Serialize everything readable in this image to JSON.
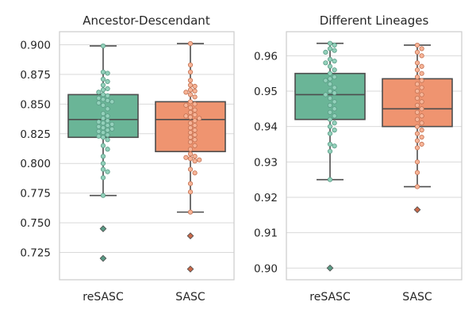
{
  "chart_data": [
    {
      "type": "box",
      "title": "Ancestor-Descendant",
      "categories": [
        "reSASC",
        "SASC"
      ],
      "ylim": [
        0.702,
        0.911
      ],
      "yticks": [
        0.725,
        0.75,
        0.775,
        0.8,
        0.825,
        0.85,
        0.875,
        0.9
      ],
      "ytick_labels": [
        "0.725",
        "0.750",
        "0.775",
        "0.800",
        "0.825",
        "0.850",
        "0.875",
        "0.900"
      ],
      "grid": true,
      "series": [
        {
          "color": "#66c2a5",
          "stats": {
            "q1": 0.822,
            "median": 0.837,
            "q3": 0.858,
            "whisker_low": 0.773,
            "whisker_high": 0.899
          },
          "outliers": [
            0.745,
            0.72
          ],
          "points": [
            0.899,
            0.877,
            0.876,
            0.871,
            0.869,
            0.866,
            0.863,
            0.862,
            0.86,
            0.858,
            0.857,
            0.855,
            0.854,
            0.853,
            0.852,
            0.851,
            0.849,
            0.846,
            0.842,
            0.84,
            0.838,
            0.836,
            0.835,
            0.834,
            0.833,
            0.832,
            0.831,
            0.83,
            0.829,
            0.828,
            0.827,
            0.826,
            0.824,
            0.823,
            0.822,
            0.82,
            0.815,
            0.812,
            0.806,
            0.8,
            0.795,
            0.793,
            0.788,
            0.773
          ]
        },
        {
          "color": "#fc8d62",
          "stats": {
            "q1": 0.81,
            "median": 0.837,
            "q3": 0.852,
            "whisker_low": 0.759,
            "whisker_high": 0.901
          },
          "outliers": [
            0.739,
            0.711
          ],
          "points": [
            0.901,
            0.883,
            0.877,
            0.87,
            0.866,
            0.865,
            0.862,
            0.861,
            0.86,
            0.858,
            0.856,
            0.852,
            0.85,
            0.849,
            0.847,
            0.845,
            0.843,
            0.841,
            0.84,
            0.839,
            0.838,
            0.836,
            0.834,
            0.832,
            0.83,
            0.828,
            0.826,
            0.824,
            0.822,
            0.82,
            0.818,
            0.815,
            0.812,
            0.808,
            0.806,
            0.805,
            0.804,
            0.803,
            0.802,
            0.795,
            0.792,
            0.783,
            0.776,
            0.759
          ]
        }
      ]
    },
    {
      "type": "box",
      "title": "Different Lineages",
      "categories": [
        "reSASC",
        "SASC"
      ],
      "ylim": [
        0.8967,
        0.9668
      ],
      "yticks": [
        0.9,
        0.91,
        0.92,
        0.93,
        0.94,
        0.95,
        0.96
      ],
      "ytick_labels": [
        "0.90",
        "0.91",
        "0.92",
        "0.93",
        "0.94",
        "0.95",
        "0.96"
      ],
      "grid": true,
      "series": [
        {
          "color": "#66c2a5",
          "stats": {
            "q1": 0.942,
            "median": 0.949,
            "q3": 0.955,
            "whisker_low": 0.925,
            "whisker_high": 0.9635
          },
          "outliers": [
            0.9
          ],
          "points": [
            0.9635,
            0.963,
            0.962,
            0.9615,
            0.961,
            0.959,
            0.9585,
            0.958,
            0.957,
            0.956,
            0.955,
            0.954,
            0.9535,
            0.953,
            0.952,
            0.951,
            0.95,
            0.9495,
            0.949,
            0.948,
            0.947,
            0.946,
            0.945,
            0.944,
            0.943,
            0.942,
            0.941,
            0.94,
            0.939,
            0.938,
            0.935,
            0.9345,
            0.933,
            0.925
          ]
        },
        {
          "color": "#fc8d62",
          "stats": {
            "q1": 0.94,
            "median": 0.945,
            "q3": 0.9535,
            "whisker_low": 0.923,
            "whisker_high": 0.963
          },
          "outliers": [
            0.9165
          ],
          "points": [
            0.963,
            0.962,
            0.961,
            0.96,
            0.958,
            0.957,
            0.956,
            0.955,
            0.954,
            0.953,
            0.952,
            0.951,
            0.95,
            0.949,
            0.948,
            0.947,
            0.946,
            0.945,
            0.944,
            0.943,
            0.942,
            0.941,
            0.94,
            0.939,
            0.938,
            0.937,
            0.936,
            0.935,
            0.934,
            0.93,
            0.927,
            0.923
          ]
        }
      ]
    }
  ]
}
